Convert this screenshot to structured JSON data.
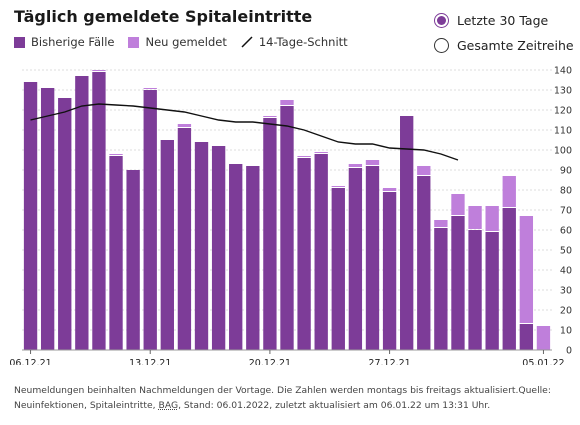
{
  "title": "Täglich gemeldete Spitaleintritte",
  "legend": {
    "existing": "Bisherige Fälle",
    "new": "Neu gemeldet",
    "avg": "14-Tage-Schnitt"
  },
  "controls": {
    "options": [
      {
        "label": "Letzte 30 Tage",
        "selected": true
      },
      {
        "label": "Gesamte Zeitreihe",
        "selected": false
      }
    ]
  },
  "colors": {
    "existing": "#7d3c98",
    "new": "#bf7fdb",
    "avg": "#111111",
    "grid": "#dddddd"
  },
  "chart_data": {
    "type": "bar",
    "stacked": true,
    "x_tick_labels": [
      "06.12.21",
      "13.12.21",
      "20.12.21",
      "27.12.21",
      "05.01.22"
    ],
    "x_tick_index": [
      0,
      7,
      14,
      21,
      30
    ],
    "ylim": [
      0,
      140
    ],
    "y_ticks": [
      0,
      10,
      20,
      30,
      40,
      50,
      60,
      70,
      80,
      90,
      100,
      110,
      120,
      130,
      140
    ],
    "grid": true,
    "y_axis_position": "right",
    "series": [
      {
        "name": "Bisherige Fälle",
        "values": [
          134,
          131,
          126,
          137,
          139,
          97,
          90,
          130,
          105,
          111,
          104,
          102,
          93,
          92,
          116,
          122,
          96,
          98,
          81,
          91,
          92,
          79,
          117,
          87,
          61,
          67,
          60,
          59,
          71,
          13,
          0
        ]
      },
      {
        "name": "Neu gemeldet",
        "values": [
          0,
          0,
          0,
          0,
          1,
          1,
          0,
          1,
          0,
          2,
          0,
          0,
          0,
          0,
          1,
          3,
          1,
          1,
          1,
          2,
          3,
          2,
          0,
          5,
          4,
          11,
          12,
          13,
          16,
          54,
          12
        ]
      },
      {
        "name": "14-Tage-Schnitt",
        "type": "line",
        "values": [
          115,
          117,
          119,
          122,
          123,
          122.5,
          122,
          121,
          120,
          119,
          117,
          115,
          114,
          114,
          113,
          112,
          110,
          107,
          104,
          103,
          103,
          101,
          100.5,
          100,
          98,
          95
        ]
      }
    ]
  },
  "footnote": {
    "line1": "Neumeldungen beinhalten Nachmeldungen der Vortage. Die Zahlen werden montags bis freitags aktualisiert.Quelle:",
    "line2_pre": "Neuinfektionen, Spitaleintritte, ",
    "line2_src": "BAG",
    "line2_post": ", Stand: 06.01.2022, zuletzt aktualisiert am 06.01.22 um 13:31 Uhr."
  }
}
